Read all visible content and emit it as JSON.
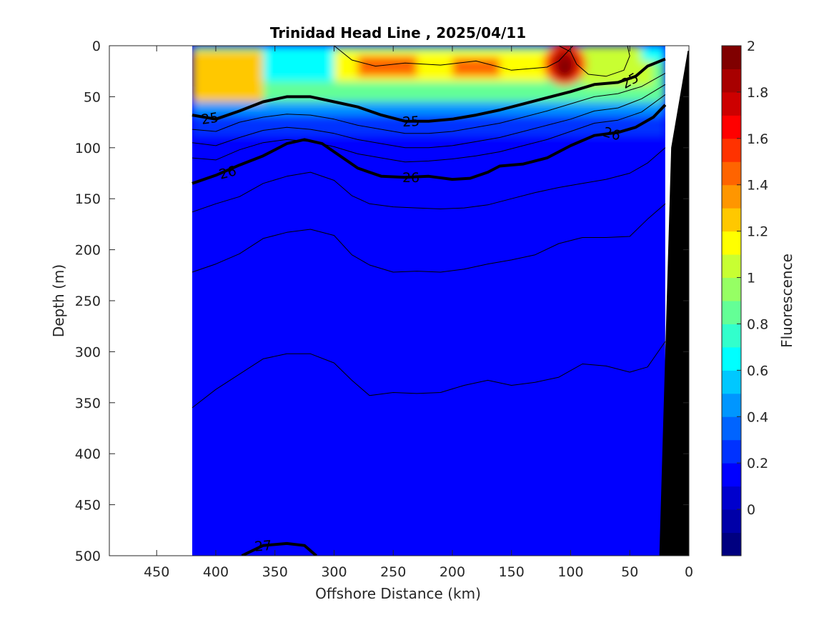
{
  "chart_data": {
    "type": "heatmap",
    "title": "Trinidad Head Line , 2025/04/11",
    "xlabel": "Offshore Distance (km)",
    "ylabel": "Depth (m)",
    "colorbar_label": "Fluorescence",
    "xlim": [
      490,
      0
    ],
    "ylim": [
      0,
      500
    ],
    "x_reversed": true,
    "y_reversed": true,
    "x_ticks": [
      450,
      400,
      350,
      300,
      250,
      200,
      150,
      100,
      50,
      0
    ],
    "y_ticks": [
      0,
      50,
      100,
      150,
      200,
      250,
      300,
      350,
      400,
      450,
      500
    ],
    "data_extent_km": [
      420,
      20
    ],
    "colorbar": {
      "range": [
        -0.2,
        2.0
      ],
      "ticks": [
        0,
        0.2,
        0.4,
        0.6,
        0.8,
        1,
        1.2,
        1.4,
        1.6,
        1.8,
        2
      ],
      "levels": [
        "#000080",
        "#0000a8",
        "#0000cd",
        "#0000ff",
        "#0032ff",
        "#0064ff",
        "#0096ff",
        "#00c8ff",
        "#00ffff",
        "#32ffcc",
        "#64ff96",
        "#96ff64",
        "#c8ff32",
        "#ffff00",
        "#ffc800",
        "#ff9600",
        "#ff6400",
        "#ff3200",
        "#ff0000",
        "#cd0000",
        "#a80000",
        "#800000"
      ]
    },
    "fluorescence_features": [
      {
        "description": "surface layer 0-60 m",
        "value_range": [
          0.6,
          1.4
        ]
      },
      {
        "description": "subsurface maximum near 100 km",
        "depth_m": 15,
        "value": 2.0
      },
      {
        "description": "below ~100 m",
        "value": 0.1
      }
    ],
    "density_contours": [
      {
        "label": "25",
        "bold": true,
        "points": [
          [
            420,
            68
          ],
          [
            400,
            72
          ],
          [
            380,
            64
          ],
          [
            360,
            55
          ],
          [
            340,
            50
          ],
          [
            320,
            50
          ],
          [
            300,
            55
          ],
          [
            280,
            60
          ],
          [
            260,
            68
          ],
          [
            240,
            74
          ],
          [
            220,
            74
          ],
          [
            200,
            72
          ],
          [
            180,
            68
          ],
          [
            160,
            63
          ],
          [
            140,
            57
          ],
          [
            120,
            51
          ],
          [
            100,
            45
          ],
          [
            80,
            38
          ],
          [
            60,
            36
          ],
          [
            45,
            30
          ],
          [
            35,
            20
          ],
          [
            20,
            13
          ]
        ]
      },
      {
        "label": "26",
        "bold": true,
        "points": [
          [
            420,
            135
          ],
          [
            400,
            127
          ],
          [
            380,
            117
          ],
          [
            360,
            108
          ],
          [
            340,
            96
          ],
          [
            325,
            92
          ],
          [
            310,
            96
          ],
          [
            295,
            108
          ],
          [
            280,
            120
          ],
          [
            260,
            128
          ],
          [
            240,
            129
          ],
          [
            220,
            128
          ],
          [
            200,
            131
          ],
          [
            185,
            130
          ],
          [
            170,
            124
          ],
          [
            160,
            118
          ],
          [
            140,
            116
          ],
          [
            120,
            110
          ],
          [
            100,
            98
          ],
          [
            80,
            88
          ],
          [
            60,
            85
          ],
          [
            45,
            80
          ],
          [
            30,
            70
          ],
          [
            20,
            58
          ]
        ]
      },
      {
        "label": "27",
        "bold": true,
        "points": [
          [
            378,
            500
          ],
          [
            360,
            490
          ],
          [
            340,
            488
          ],
          [
            325,
            490
          ],
          [
            315,
            500
          ]
        ]
      },
      {
        "label": "",
        "bold": false,
        "points": [
          [
            420,
            82
          ],
          [
            400,
            84
          ],
          [
            380,
            75
          ],
          [
            360,
            70
          ],
          [
            340,
            67
          ],
          [
            320,
            68
          ],
          [
            300,
            72
          ],
          [
            280,
            78
          ],
          [
            260,
            82
          ],
          [
            240,
            86
          ],
          [
            220,
            86
          ],
          [
            200,
            84
          ],
          [
            180,
            80
          ],
          [
            160,
            76
          ],
          [
            140,
            70
          ],
          [
            120,
            64
          ],
          [
            100,
            57
          ],
          [
            80,
            50
          ],
          [
            60,
            47
          ],
          [
            40,
            40
          ],
          [
            20,
            27
          ]
        ]
      },
      {
        "label": "",
        "bold": false,
        "points": [
          [
            420,
            95
          ],
          [
            400,
            98
          ],
          [
            380,
            90
          ],
          [
            360,
            83
          ],
          [
            340,
            80
          ],
          [
            320,
            82
          ],
          [
            300,
            86
          ],
          [
            280,
            92
          ],
          [
            260,
            96
          ],
          [
            240,
            100
          ],
          [
            220,
            100
          ],
          [
            200,
            98
          ],
          [
            180,
            94
          ],
          [
            160,
            90
          ],
          [
            140,
            84
          ],
          [
            120,
            78
          ],
          [
            100,
            72
          ],
          [
            80,
            64
          ],
          [
            60,
            61
          ],
          [
            40,
            52
          ],
          [
            20,
            38
          ]
        ]
      },
      {
        "label": "",
        "bold": false,
        "points": [
          [
            420,
            110
          ],
          [
            400,
            112
          ],
          [
            380,
            102
          ],
          [
            360,
            95
          ],
          [
            340,
            92
          ],
          [
            320,
            94
          ],
          [
            300,
            99
          ],
          [
            280,
            106
          ],
          [
            260,
            110
          ],
          [
            240,
            114
          ],
          [
            220,
            113
          ],
          [
            200,
            111
          ],
          [
            180,
            108
          ],
          [
            160,
            104
          ],
          [
            140,
            98
          ],
          [
            120,
            92
          ],
          [
            100,
            84
          ],
          [
            80,
            76
          ],
          [
            60,
            73
          ],
          [
            40,
            65
          ],
          [
            20,
            48
          ]
        ]
      },
      {
        "label": "",
        "bold": false,
        "points": [
          [
            420,
            163
          ],
          [
            400,
            155
          ],
          [
            380,
            148
          ],
          [
            360,
            135
          ],
          [
            340,
            128
          ],
          [
            320,
            124
          ],
          [
            300,
            132
          ],
          [
            285,
            147
          ],
          [
            270,
            155
          ],
          [
            250,
            158
          ],
          [
            230,
            159
          ],
          [
            210,
            160
          ],
          [
            190,
            159
          ],
          [
            170,
            156
          ],
          [
            150,
            150
          ],
          [
            130,
            144
          ],
          [
            110,
            139
          ],
          [
            90,
            135
          ],
          [
            70,
            131
          ],
          [
            50,
            125
          ],
          [
            35,
            115
          ],
          [
            20,
            100
          ]
        ]
      },
      {
        "label": "",
        "bold": false,
        "points": [
          [
            420,
            222
          ],
          [
            400,
            214
          ],
          [
            380,
            204
          ],
          [
            360,
            189
          ],
          [
            340,
            183
          ],
          [
            320,
            180
          ],
          [
            300,
            186
          ],
          [
            285,
            205
          ],
          [
            270,
            215
          ],
          [
            250,
            222
          ],
          [
            230,
            221
          ],
          [
            210,
            222
          ],
          [
            190,
            219
          ],
          [
            170,
            214
          ],
          [
            150,
            210
          ],
          [
            130,
            205
          ],
          [
            110,
            194
          ],
          [
            90,
            188
          ],
          [
            70,
            188
          ],
          [
            50,
            187
          ],
          [
            35,
            170
          ],
          [
            20,
            155
          ]
        ]
      },
      {
        "label": "",
        "bold": false,
        "points": [
          [
            420,
            355
          ],
          [
            400,
            337
          ],
          [
            380,
            322
          ],
          [
            360,
            307
          ],
          [
            340,
            302
          ],
          [
            320,
            302
          ],
          [
            300,
            311
          ],
          [
            285,
            328
          ],
          [
            270,
            343
          ],
          [
            250,
            340
          ],
          [
            230,
            341
          ],
          [
            210,
            340
          ],
          [
            190,
            333
          ],
          [
            170,
            328
          ],
          [
            150,
            333
          ],
          [
            130,
            330
          ],
          [
            110,
            325
          ],
          [
            90,
            312
          ],
          [
            70,
            314
          ],
          [
            50,
            320
          ],
          [
            35,
            315
          ],
          [
            20,
            290
          ]
        ]
      },
      {
        "label": "",
        "bold": false,
        "points": [
          [
            300,
            0
          ],
          [
            285,
            14
          ],
          [
            265,
            20
          ],
          [
            240,
            17
          ],
          [
            210,
            19
          ],
          [
            180,
            15
          ],
          [
            150,
            24
          ],
          [
            120,
            21
          ],
          [
            110,
            15
          ],
          [
            98,
            0
          ]
        ]
      },
      {
        "label": "",
        "bold": false,
        "points": [
          [
            110,
            0
          ],
          [
            100,
            6
          ],
          [
            95,
            18
          ],
          [
            85,
            28
          ],
          [
            70,
            30
          ],
          [
            55,
            24
          ],
          [
            50,
            10
          ],
          [
            52,
            0
          ]
        ]
      }
    ],
    "bathymetry": {
      "fill": "#000000",
      "points": [
        [
          25,
          500
        ],
        [
          20,
          300
        ],
        [
          15,
          100
        ],
        [
          1,
          5
        ],
        [
          0,
          5
        ],
        [
          0,
          500
        ]
      ]
    }
  }
}
